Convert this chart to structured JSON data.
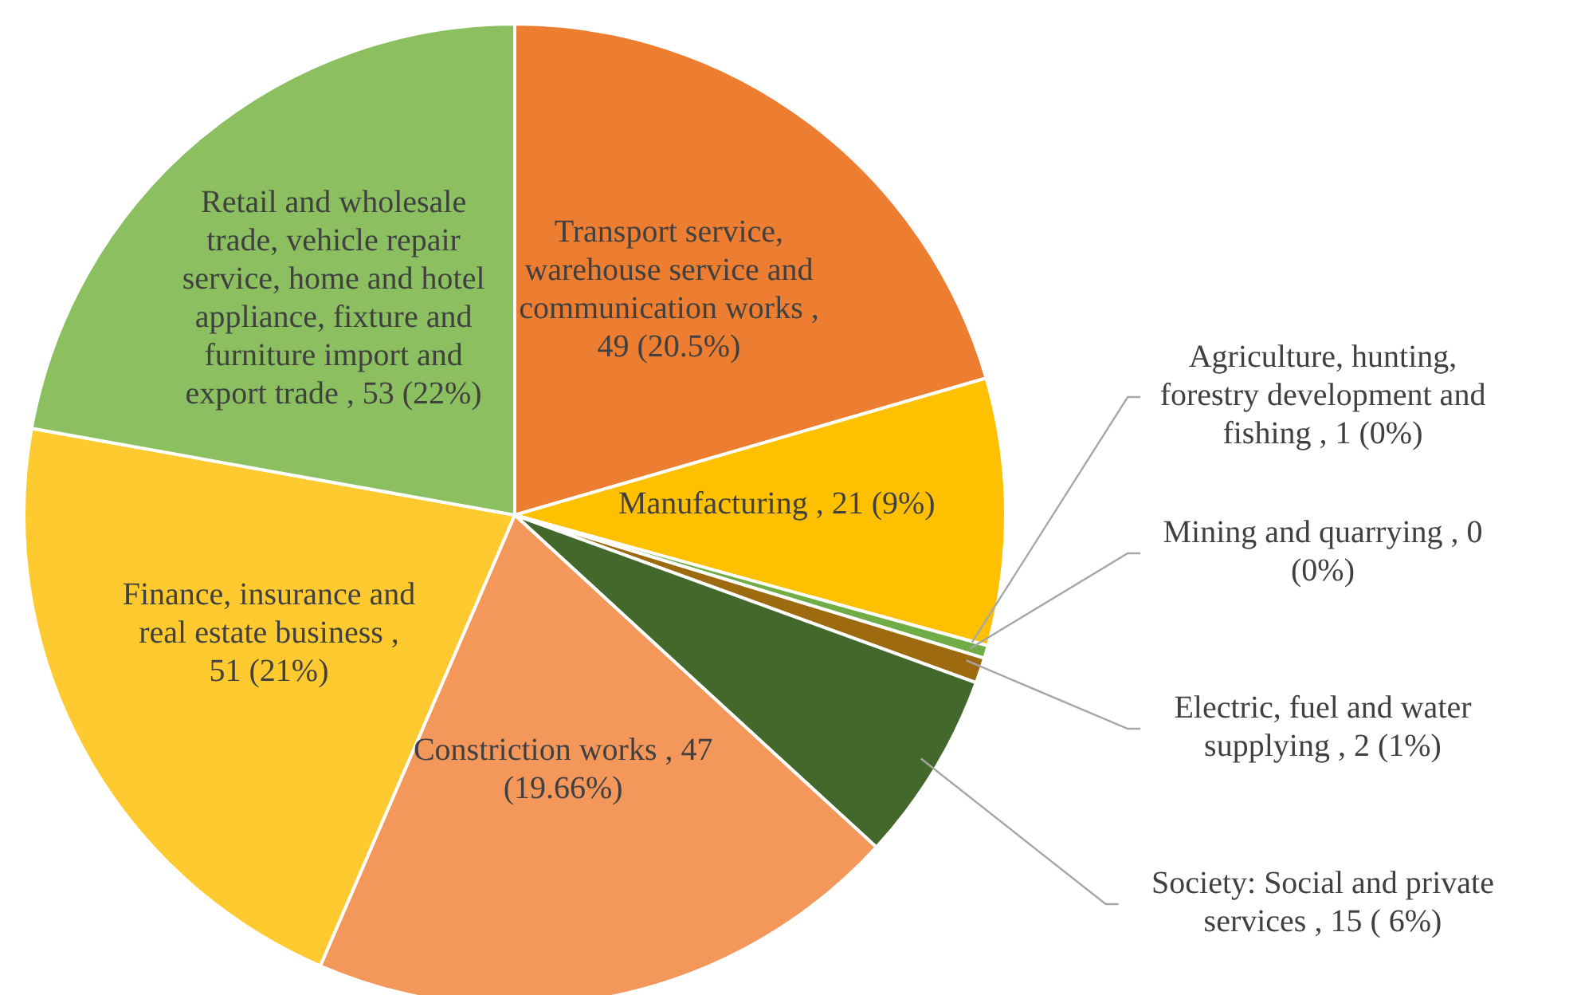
{
  "chart_data": {
    "type": "pie",
    "categories": [
      "Transport service, warehouse service and communication works",
      "Manufacturing",
      "Agriculture, hunting, forestry development and fishing",
      "Mining and quarrying",
      "Electric, fuel and water supplying",
      "Society: Social and private services",
      "Constriction works",
      "Finance, insurance and real estate business",
      "Retail and wholesale trade, vehicle repair service, home and hotel appliance, fixture and furniture import and export trade"
    ],
    "values": [
      49,
      21,
      1,
      0,
      2,
      15,
      47,
      51,
      53
    ],
    "value_labels": [
      ", 49 (20.5%)",
      ", 21 (9%)",
      ", 1 (0%)",
      ", 0 (0%)",
      ", 2 (1%)",
      ", 15 ( 6%)",
      ", 47 (19.66%)",
      ", 51 (21%)",
      ", 53 (22%)"
    ],
    "colors": [
      "#ed7d31",
      "#ffc000",
      "#70ad47",
      "#a5a5a5",
      "#9e6a0f",
      "#43682b",
      "#f4975b",
      "#ffca2f",
      "#8bbf60"
    ]
  }
}
